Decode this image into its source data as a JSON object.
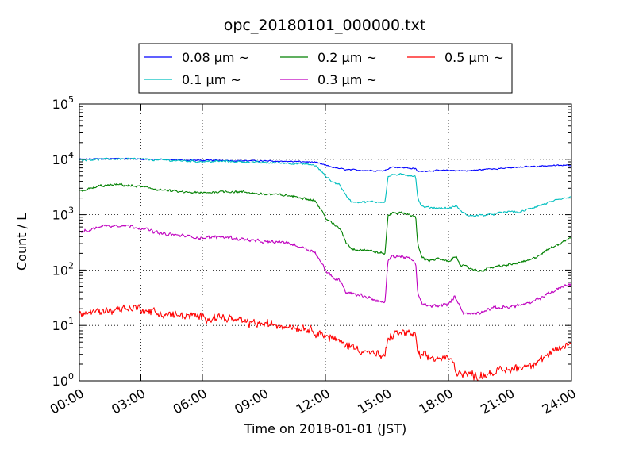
{
  "chart_data": {
    "type": "line",
    "title": "opc_20180101_000000.txt",
    "xlabel": "Time on 2018-01-01 (JST)",
    "ylabel": "Count / L",
    "yscale": "log",
    "ylim": [
      1,
      100000
    ],
    "xlim": [
      0,
      24
    ],
    "y_ticks": [
      {
        "value": 1,
        "base": "10",
        "exp": "0"
      },
      {
        "value": 10,
        "base": "10",
        "exp": "1"
      },
      {
        "value": 100,
        "base": "10",
        "exp": "2"
      },
      {
        "value": 1000,
        "base": "10",
        "exp": "3"
      },
      {
        "value": 10000,
        "base": "10",
        "exp": "4"
      },
      {
        "value": 100000,
        "base": "10",
        "exp": "5"
      }
    ],
    "x_ticks": [
      {
        "value": 0,
        "label": "00:00"
      },
      {
        "value": 3,
        "label": "03:00"
      },
      {
        "value": 6,
        "label": "06:00"
      },
      {
        "value": 9,
        "label": "09:00"
      },
      {
        "value": 12,
        "label": "12:00"
      },
      {
        "value": 15,
        "label": "15:00"
      },
      {
        "value": 18,
        "label": "18:00"
      },
      {
        "value": 21,
        "label": "21:00"
      },
      {
        "value": 24,
        "label": "24:00"
      }
    ],
    "grid": true,
    "legend_position": "top-center",
    "series": [
      {
        "name": "0.08 μm ~",
        "color": "#0000ff",
        "noise": 0.008,
        "points": [
          [
            0,
            10000
          ],
          [
            1,
            10200
          ],
          [
            2,
            10300
          ],
          [
            3,
            10100
          ],
          [
            4,
            9900
          ],
          [
            5,
            9700
          ],
          [
            6,
            9500
          ],
          [
            7,
            9600
          ],
          [
            8,
            9400
          ],
          [
            9,
            9300
          ],
          [
            10,
            9200
          ],
          [
            11,
            9000
          ],
          [
            11.5,
            8800
          ],
          [
            12,
            7800
          ],
          [
            12.5,
            7000
          ],
          [
            13,
            6500
          ],
          [
            14,
            6300
          ],
          [
            14.9,
            6200
          ],
          [
            15.2,
            7300
          ],
          [
            16,
            7000
          ],
          [
            16.4,
            6700
          ],
          [
            16.5,
            6000
          ],
          [
            17,
            6200
          ],
          [
            18,
            6300
          ],
          [
            19,
            6200
          ],
          [
            20,
            6700
          ],
          [
            21,
            7000
          ],
          [
            22,
            7400
          ],
          [
            23,
            7700
          ],
          [
            24,
            7800
          ]
        ]
      },
      {
        "name": "0.1 μm ~",
        "color": "#00bfbf",
        "noise": 0.012,
        "points": [
          [
            0,
            9800
          ],
          [
            1,
            10000
          ],
          [
            2,
            10200
          ],
          [
            3,
            10000
          ],
          [
            4,
            9700
          ],
          [
            5,
            9400
          ],
          [
            6,
            9100
          ],
          [
            7,
            9200
          ],
          [
            8,
            9000
          ],
          [
            9,
            8700
          ],
          [
            10,
            8600
          ],
          [
            11,
            8200
          ],
          [
            11.5,
            7800
          ],
          [
            12,
            5000
          ],
          [
            12.3,
            4000
          ],
          [
            12.7,
            3500
          ],
          [
            13,
            2200
          ],
          [
            13.3,
            1700
          ],
          [
            14,
            1700
          ],
          [
            14.9,
            1700
          ],
          [
            15.05,
            4800
          ],
          [
            15.3,
            5300
          ],
          [
            16,
            5200
          ],
          [
            16.4,
            5000
          ],
          [
            16.5,
            2000
          ],
          [
            16.7,
            1400
          ],
          [
            17,
            1350
          ],
          [
            18,
            1300
          ],
          [
            18.4,
            1450
          ],
          [
            18.6,
            1150
          ],
          [
            19,
            950
          ],
          [
            20,
            1000
          ],
          [
            21,
            1150
          ],
          [
            21.5,
            1100
          ],
          [
            22,
            1300
          ],
          [
            23,
            1700
          ],
          [
            24,
            2100
          ]
        ]
      },
      {
        "name": "0.2 μm ~",
        "color": "#008000",
        "noise": 0.015,
        "points": [
          [
            0,
            2700
          ],
          [
            0.5,
            2900
          ],
          [
            1,
            3300
          ],
          [
            2,
            3500
          ],
          [
            2.5,
            3300
          ],
          [
            3,
            3200
          ],
          [
            4,
            2800
          ],
          [
            5,
            2550
          ],
          [
            6,
            2450
          ],
          [
            7,
            2650
          ],
          [
            8,
            2550
          ],
          [
            9,
            2350
          ],
          [
            10,
            2250
          ],
          [
            11,
            2000
          ],
          [
            11.5,
            1800
          ],
          [
            12,
            900
          ],
          [
            12.3,
            700
          ],
          [
            12.6,
            600
          ],
          [
            12.8,
            500
          ],
          [
            13,
            320
          ],
          [
            13.3,
            240
          ],
          [
            14,
            230
          ],
          [
            14.9,
            195
          ],
          [
            15.05,
            950
          ],
          [
            15.3,
            1100
          ],
          [
            16,
            1050
          ],
          [
            16.4,
            900
          ],
          [
            16.5,
            300
          ],
          [
            16.7,
            170
          ],
          [
            17,
            150
          ],
          [
            17.5,
            160
          ],
          [
            18,
            140
          ],
          [
            18.2,
            160
          ],
          [
            18.4,
            180
          ],
          [
            18.6,
            120
          ],
          [
            19,
            110
          ],
          [
            19.5,
            95
          ],
          [
            20,
            110
          ],
          [
            21,
            125
          ],
          [
            22,
            150
          ],
          [
            23,
            250
          ],
          [
            24,
            400
          ]
        ]
      },
      {
        "name": "0.3 μm ~",
        "color": "#bf00bf",
        "noise": 0.02,
        "points": [
          [
            0,
            480
          ],
          [
            0.5,
            520
          ],
          [
            1,
            620
          ],
          [
            2,
            650
          ],
          [
            2.5,
            620
          ],
          [
            3,
            580
          ],
          [
            4,
            450
          ],
          [
            5,
            420
          ],
          [
            6,
            380
          ],
          [
            7,
            400
          ],
          [
            8,
            360
          ],
          [
            9,
            320
          ],
          [
            10,
            320
          ],
          [
            11,
            250
          ],
          [
            11.5,
            210
          ],
          [
            12,
            100
          ],
          [
            12.3,
            75
          ],
          [
            12.6,
            68
          ],
          [
            12.8,
            60
          ],
          [
            13,
            40
          ],
          [
            13.3,
            38
          ],
          [
            14,
            33
          ],
          [
            14.9,
            25
          ],
          [
            15.05,
            150
          ],
          [
            15.3,
            180
          ],
          [
            16,
            170
          ],
          [
            16.4,
            130
          ],
          [
            16.5,
            40
          ],
          [
            16.7,
            25
          ],
          [
            17,
            22
          ],
          [
            17.5,
            23
          ],
          [
            18,
            24
          ],
          [
            18.3,
            33
          ],
          [
            18.5,
            26
          ],
          [
            18.7,
            17
          ],
          [
            19,
            16
          ],
          [
            19.5,
            17
          ],
          [
            20,
            20
          ],
          [
            21,
            22
          ],
          [
            22,
            25
          ],
          [
            23,
            40
          ],
          [
            24,
            58
          ]
        ]
      },
      {
        "name": "0.5 μm ~",
        "color": "#ff0000",
        "noise": 0.05,
        "points": [
          [
            0,
            16
          ],
          [
            1,
            18
          ],
          [
            2,
            20
          ],
          [
            2.5,
            21
          ],
          [
            3,
            20
          ],
          [
            4,
            16
          ],
          [
            5,
            15
          ],
          [
            6,
            14
          ],
          [
            7,
            14
          ],
          [
            8,
            11.5
          ],
          [
            9,
            10.5
          ],
          [
            10,
            10
          ],
          [
            11,
            9
          ],
          [
            11.5,
            8
          ],
          [
            12,
            6.5
          ],
          [
            12.5,
            5.5
          ],
          [
            13,
            4.5
          ],
          [
            14,
            3.4
          ],
          [
            14.9,
            2.6
          ],
          [
            15.05,
            5.5
          ],
          [
            15.3,
            7
          ],
          [
            16,
            7.5
          ],
          [
            16.4,
            6.5
          ],
          [
            16.5,
            3
          ],
          [
            17,
            2.6
          ],
          [
            18,
            2.5
          ],
          [
            18.2,
            2.2
          ],
          [
            18.4,
            1.5
          ],
          [
            19,
            1.3
          ],
          [
            19.5,
            1.2
          ],
          [
            20,
            1.4
          ],
          [
            21,
            1.6
          ],
          [
            22,
            2
          ],
          [
            23,
            3
          ],
          [
            24,
            5
          ]
        ]
      }
    ]
  }
}
